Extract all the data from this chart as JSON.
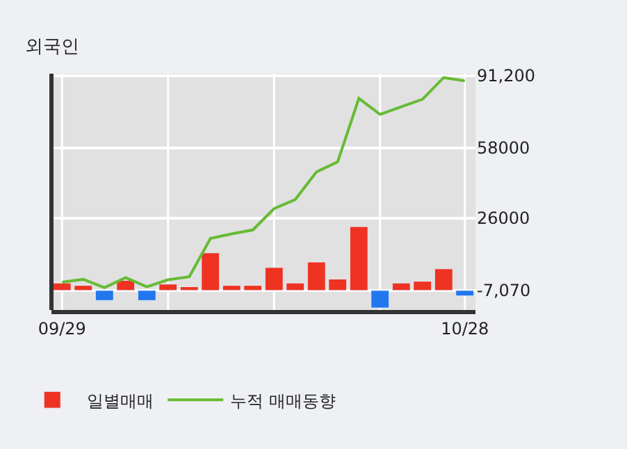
{
  "chart_data": {
    "type": "bar",
    "title": "외국인",
    "categories": [
      "09/29",
      null,
      null,
      null,
      null,
      null,
      null,
      null,
      null,
      null,
      null,
      null,
      null,
      null,
      null,
      null,
      null,
      null,
      null,
      "10/28"
    ],
    "series": [
      {
        "name": "일별매매",
        "colors": [
          "#ee3322",
          "#ee3322",
          "#2277ee",
          "#ee3322",
          "#2277ee",
          "#ee3322",
          "#ee3322",
          "#ee3322",
          "#ee3322",
          "#ee3322",
          "#ee3322",
          "#ee3322",
          "#ee3322",
          "#ee3322",
          "#ee3322",
          "#2277ee",
          "#ee3322",
          "#ee3322",
          "#ee3322",
          "#2277ee"
        ],
        "base": [
          -7070,
          -7070,
          -7070,
          -7070,
          -7070,
          -7070,
          -7070,
          -7070,
          -7070,
          -7070,
          -7070,
          -7070,
          -7070,
          -7070,
          -7070,
          -7070,
          -7070,
          -7070,
          -7070,
          -7070
        ],
        "values": [
          3400,
          2300,
          -4600,
          4600,
          -4600,
          2900,
          1700,
          17200,
          2300,
          2300,
          10500,
          3400,
          13000,
          5200,
          29200,
          -8000,
          3400,
          4200,
          9900,
          -2500
        ]
      },
      {
        "name": "누적 매매동향",
        "type": "line",
        "color": "#66bb33",
        "values": [
          -3300,
          -2000,
          -5800,
          -1200,
          -5400,
          -2200,
          -800,
          16700,
          18800,
          20600,
          30300,
          34500,
          47100,
          51700,
          80700,
          73400,
          76900,
          80300,
          90200,
          88700
        ]
      }
    ],
    "ylim": [
      -16000,
      92000
    ],
    "yticks": [
      {
        "value": 91200,
        "label": "91,200"
      },
      58000,
      26000,
      {
        "value": -7070,
        "label": "-7,070"
      }
    ],
    "grid": true,
    "legend": "bottom"
  }
}
